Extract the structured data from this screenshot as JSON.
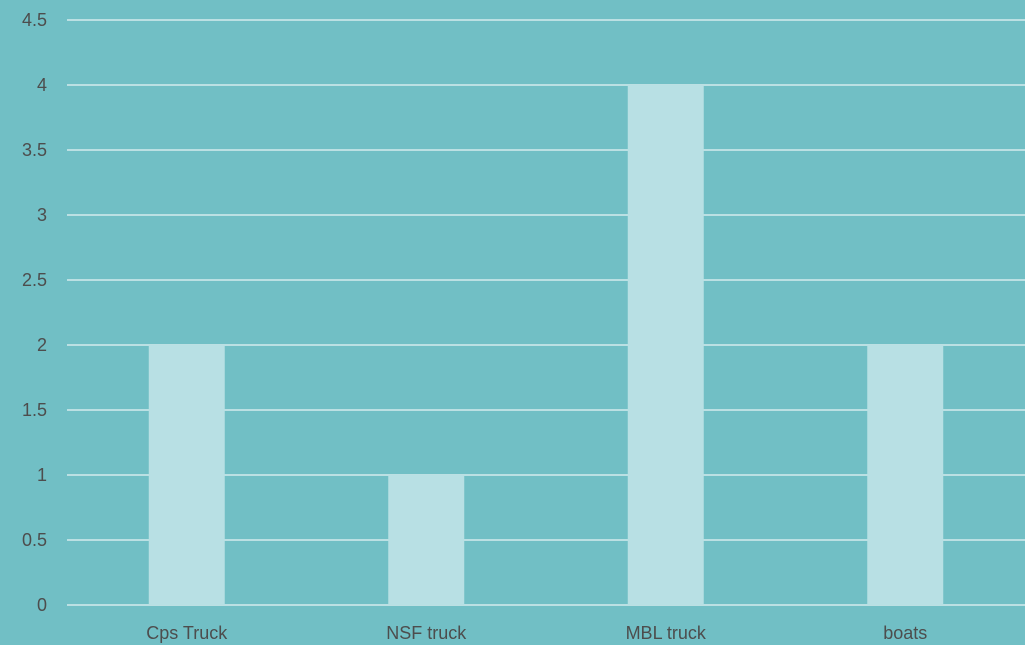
{
  "colors": {
    "background": "#71bfc5",
    "bar": "#b8e0e4",
    "gridline": "#e8f4f5",
    "text": "#4d4d4d"
  },
  "chart_data": {
    "type": "bar",
    "title": "",
    "xlabel": "",
    "ylabel": "",
    "categories": [
      "Cps Truck",
      "NSF truck",
      "MBL truck",
      "boats"
    ],
    "values": [
      2,
      1,
      4,
      2
    ],
    "ylim": [
      0,
      4.5
    ],
    "yticks": [
      "0",
      "0.5",
      "1",
      "1.5",
      "2",
      "2.5",
      "3",
      "3.5",
      "4",
      "4.5"
    ],
    "grid": true,
    "legend": "none"
  }
}
